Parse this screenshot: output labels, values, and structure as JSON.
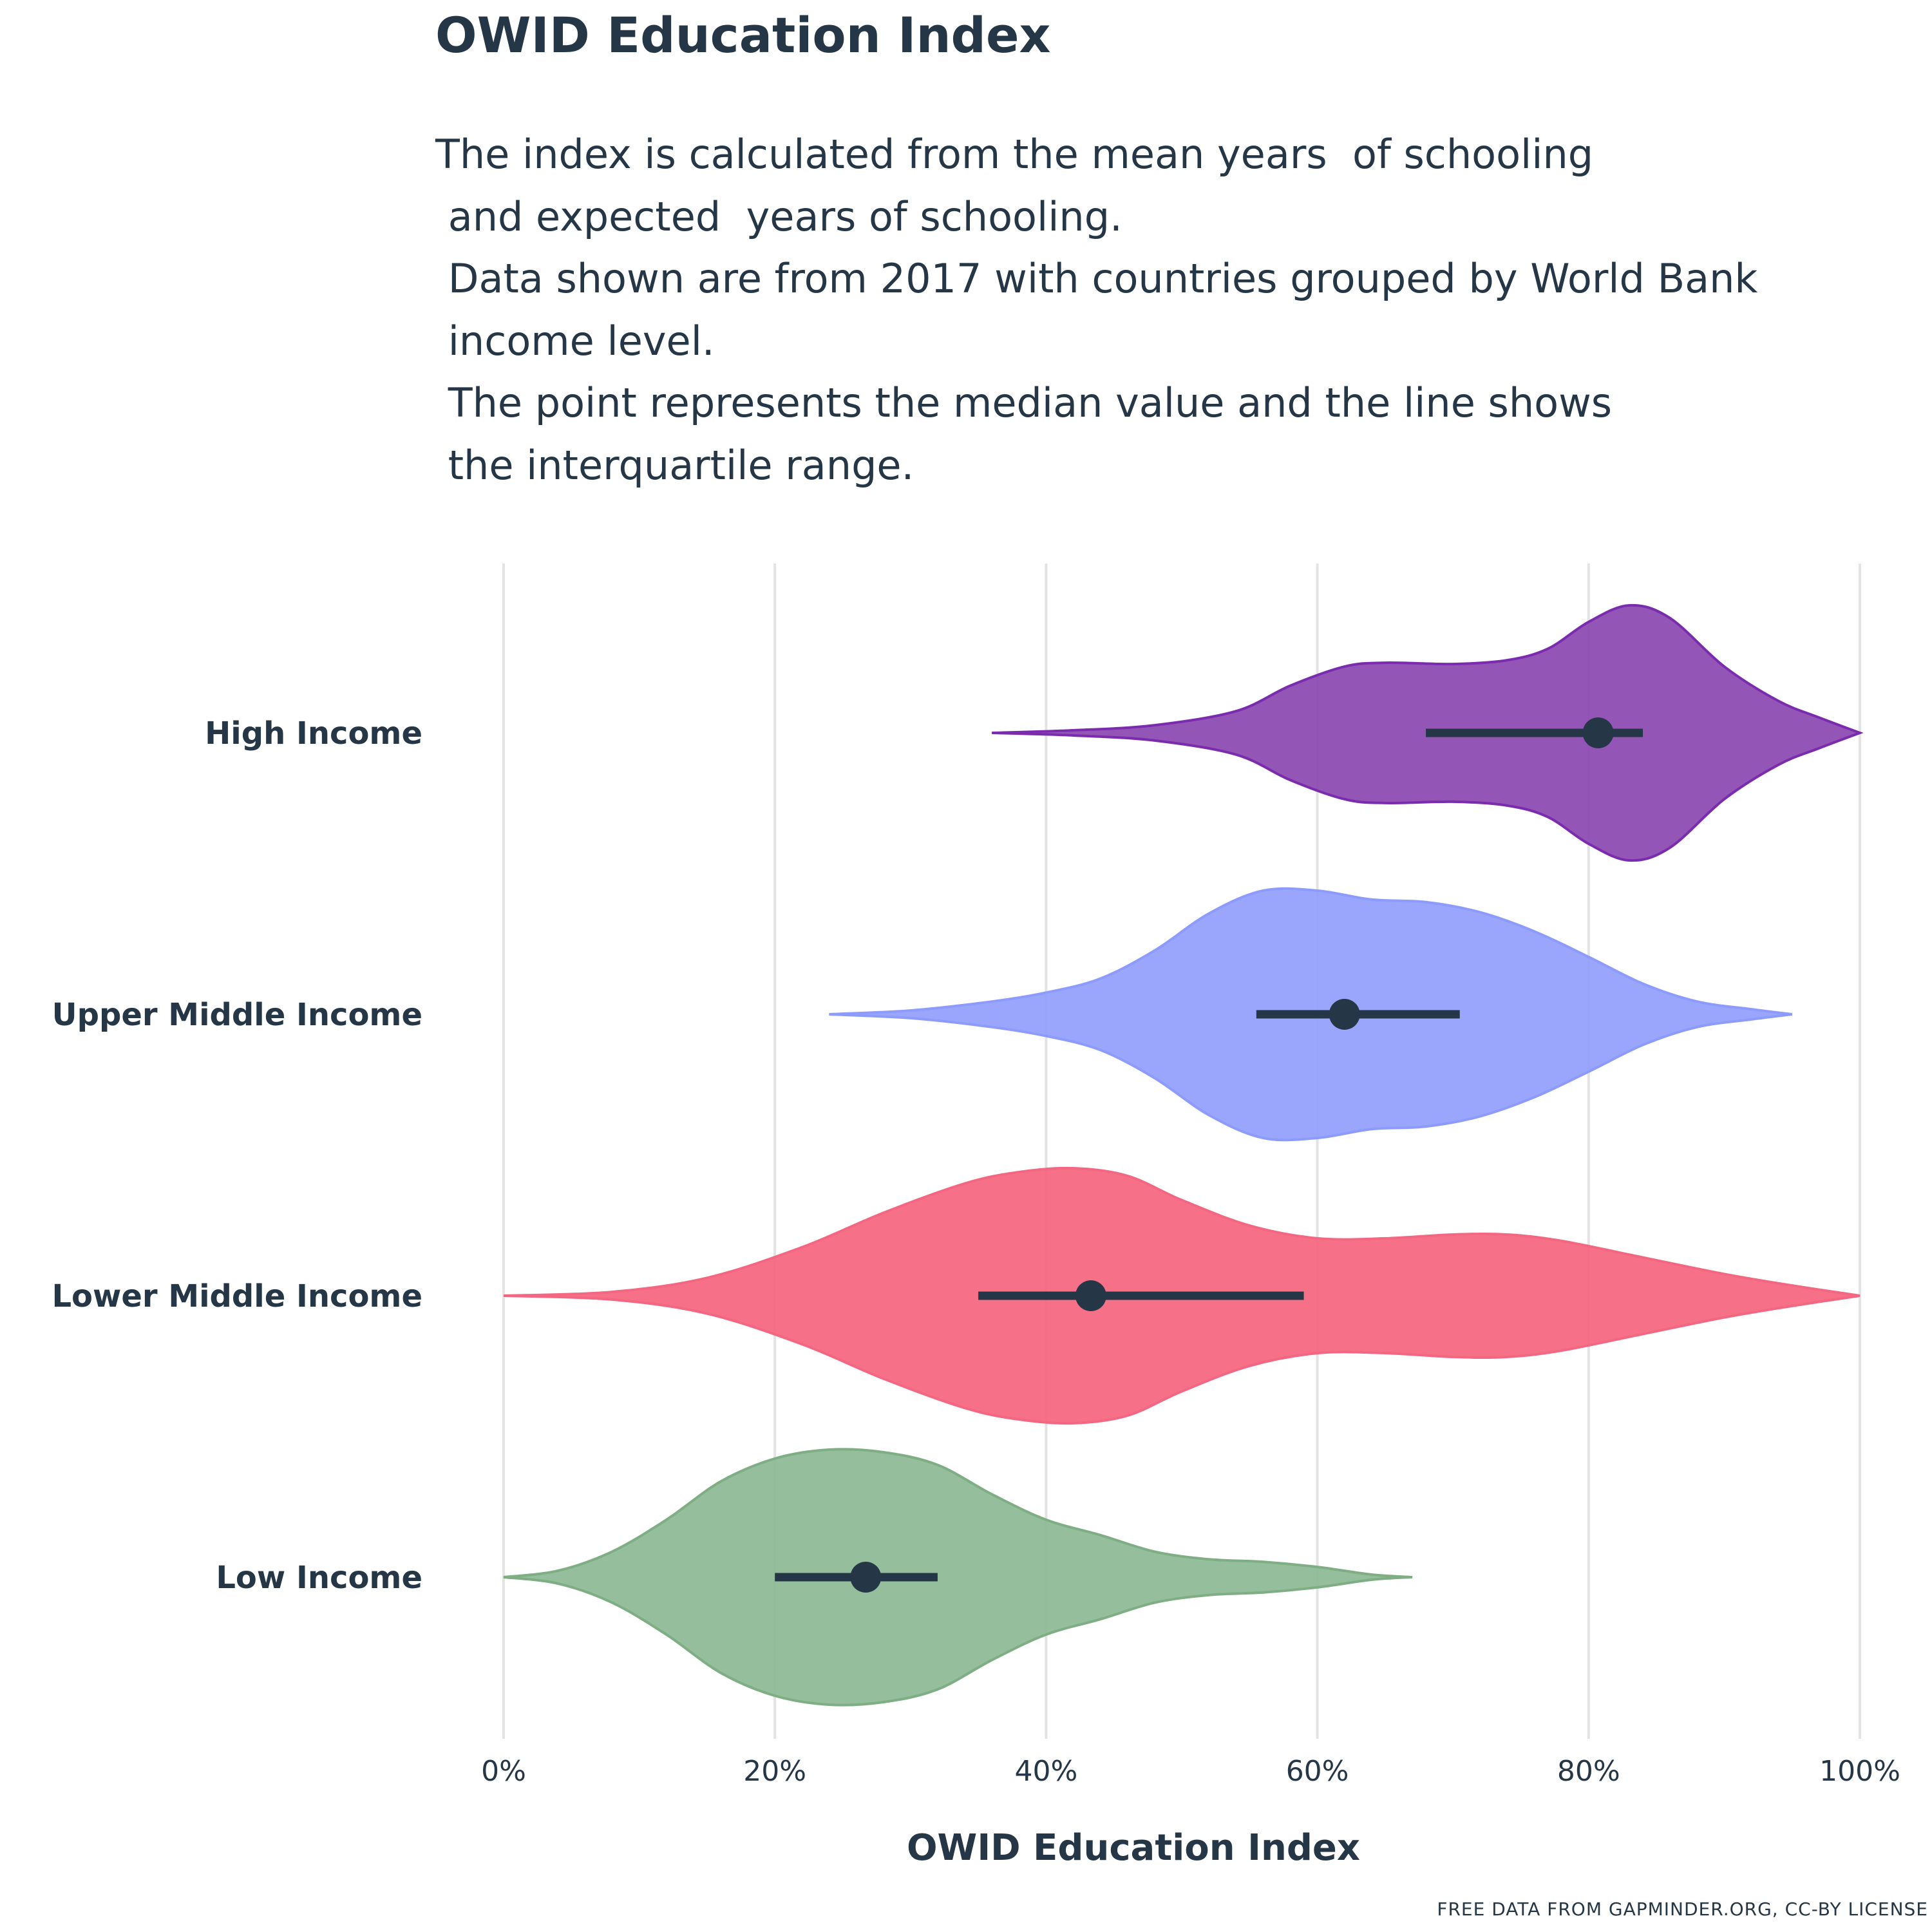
{
  "title": "OWID Education Index",
  "subtitle": "The index is calculated from the mean years  of schooling\n and expected  years of schooling.\n Data shown are from 2017 with countries grouped by World Bank\n income level.\n The point represents the median value and the line shows\n the interquartile range.",
  "caption": "FREE DATA FROM GAPMINDER.ORG, CC-BY LICENSE",
  "chart_data": {
    "type": "violin",
    "xlabel": "OWID Education Index",
    "ylabel": "",
    "xlim": [
      0,
      1
    ],
    "x_ticks": [
      0,
      0.2,
      0.4,
      0.6,
      0.8,
      1.0
    ],
    "x_tick_labels": [
      "0%",
      "20%",
      "40%",
      "60%",
      "80%",
      "100%"
    ],
    "grid": "vertical",
    "categories": [
      "High Income",
      "Upper Middle Income",
      "Lower Middle Income",
      "Low Income"
    ],
    "series": [
      {
        "category": "High Income",
        "color": "#7b2cae",
        "fill": "#8a48b0",
        "min": 0.36,
        "max": 1.0,
        "median": 0.807,
        "q1": 0.68,
        "q3": 0.84,
        "density": [
          [
            0.36,
            0.0
          ],
          [
            0.42,
            0.02
          ],
          [
            0.48,
            0.06
          ],
          [
            0.54,
            0.17
          ],
          [
            0.58,
            0.37
          ],
          [
            0.62,
            0.52
          ],
          [
            0.65,
            0.55
          ],
          [
            0.7,
            0.54
          ],
          [
            0.74,
            0.57
          ],
          [
            0.77,
            0.66
          ],
          [
            0.8,
            0.87
          ],
          [
            0.83,
            1.0
          ],
          [
            0.86,
            0.9
          ],
          [
            0.9,
            0.52
          ],
          [
            0.94,
            0.25
          ],
          [
            0.97,
            0.12
          ],
          [
            1.0,
            0.0
          ]
        ]
      },
      {
        "category": "Upper Middle Income",
        "color": "#8d9bff",
        "fill": "#909efc",
        "min": 0.24,
        "max": 0.95,
        "median": 0.62,
        "q1": 0.555,
        "q3": 0.705,
        "density": [
          [
            0.24,
            0.0
          ],
          [
            0.3,
            0.03
          ],
          [
            0.36,
            0.1
          ],
          [
            0.4,
            0.17
          ],
          [
            0.44,
            0.28
          ],
          [
            0.48,
            0.5
          ],
          [
            0.52,
            0.79
          ],
          [
            0.56,
            0.97
          ],
          [
            0.6,
            0.97
          ],
          [
            0.64,
            0.9
          ],
          [
            0.68,
            0.88
          ],
          [
            0.72,
            0.8
          ],
          [
            0.76,
            0.65
          ],
          [
            0.8,
            0.45
          ],
          [
            0.84,
            0.24
          ],
          [
            0.88,
            0.1
          ],
          [
            0.92,
            0.04
          ],
          [
            0.95,
            0.0
          ]
        ]
      },
      {
        "category": "Lower Middle Income",
        "color": "#f36782",
        "fill": "#f5657e",
        "min": 0.0,
        "max": 1.0,
        "median": 0.433,
        "q1": 0.35,
        "q3": 0.59,
        "density": [
          [
            0.0,
            0.0
          ],
          [
            0.08,
            0.03
          ],
          [
            0.15,
            0.14
          ],
          [
            0.22,
            0.38
          ],
          [
            0.28,
            0.65
          ],
          [
            0.34,
            0.88
          ],
          [
            0.38,
            0.97
          ],
          [
            0.42,
            1.0
          ],
          [
            0.46,
            0.94
          ],
          [
            0.5,
            0.75
          ],
          [
            0.55,
            0.55
          ],
          [
            0.6,
            0.45
          ],
          [
            0.65,
            0.45
          ],
          [
            0.7,
            0.48
          ],
          [
            0.74,
            0.48
          ],
          [
            0.78,
            0.43
          ],
          [
            0.84,
            0.3
          ],
          [
            0.9,
            0.17
          ],
          [
            0.95,
            0.08
          ],
          [
            1.0,
            0.0
          ]
        ]
      },
      {
        "category": "Low Income",
        "color": "#7fae84",
        "fill": "#8cb995",
        "min": 0.0,
        "max": 0.67,
        "median": 0.267,
        "q1": 0.2,
        "q3": 0.32,
        "density": [
          [
            0.0,
            0.0
          ],
          [
            0.04,
            0.05
          ],
          [
            0.08,
            0.2
          ],
          [
            0.12,
            0.45
          ],
          [
            0.16,
            0.75
          ],
          [
            0.2,
            0.93
          ],
          [
            0.24,
            1.0
          ],
          [
            0.28,
            0.98
          ],
          [
            0.32,
            0.88
          ],
          [
            0.36,
            0.65
          ],
          [
            0.4,
            0.45
          ],
          [
            0.44,
            0.33
          ],
          [
            0.48,
            0.2
          ],
          [
            0.52,
            0.14
          ],
          [
            0.56,
            0.12
          ],
          [
            0.6,
            0.08
          ],
          [
            0.64,
            0.02
          ],
          [
            0.67,
            0.0
          ]
        ]
      }
    ]
  }
}
